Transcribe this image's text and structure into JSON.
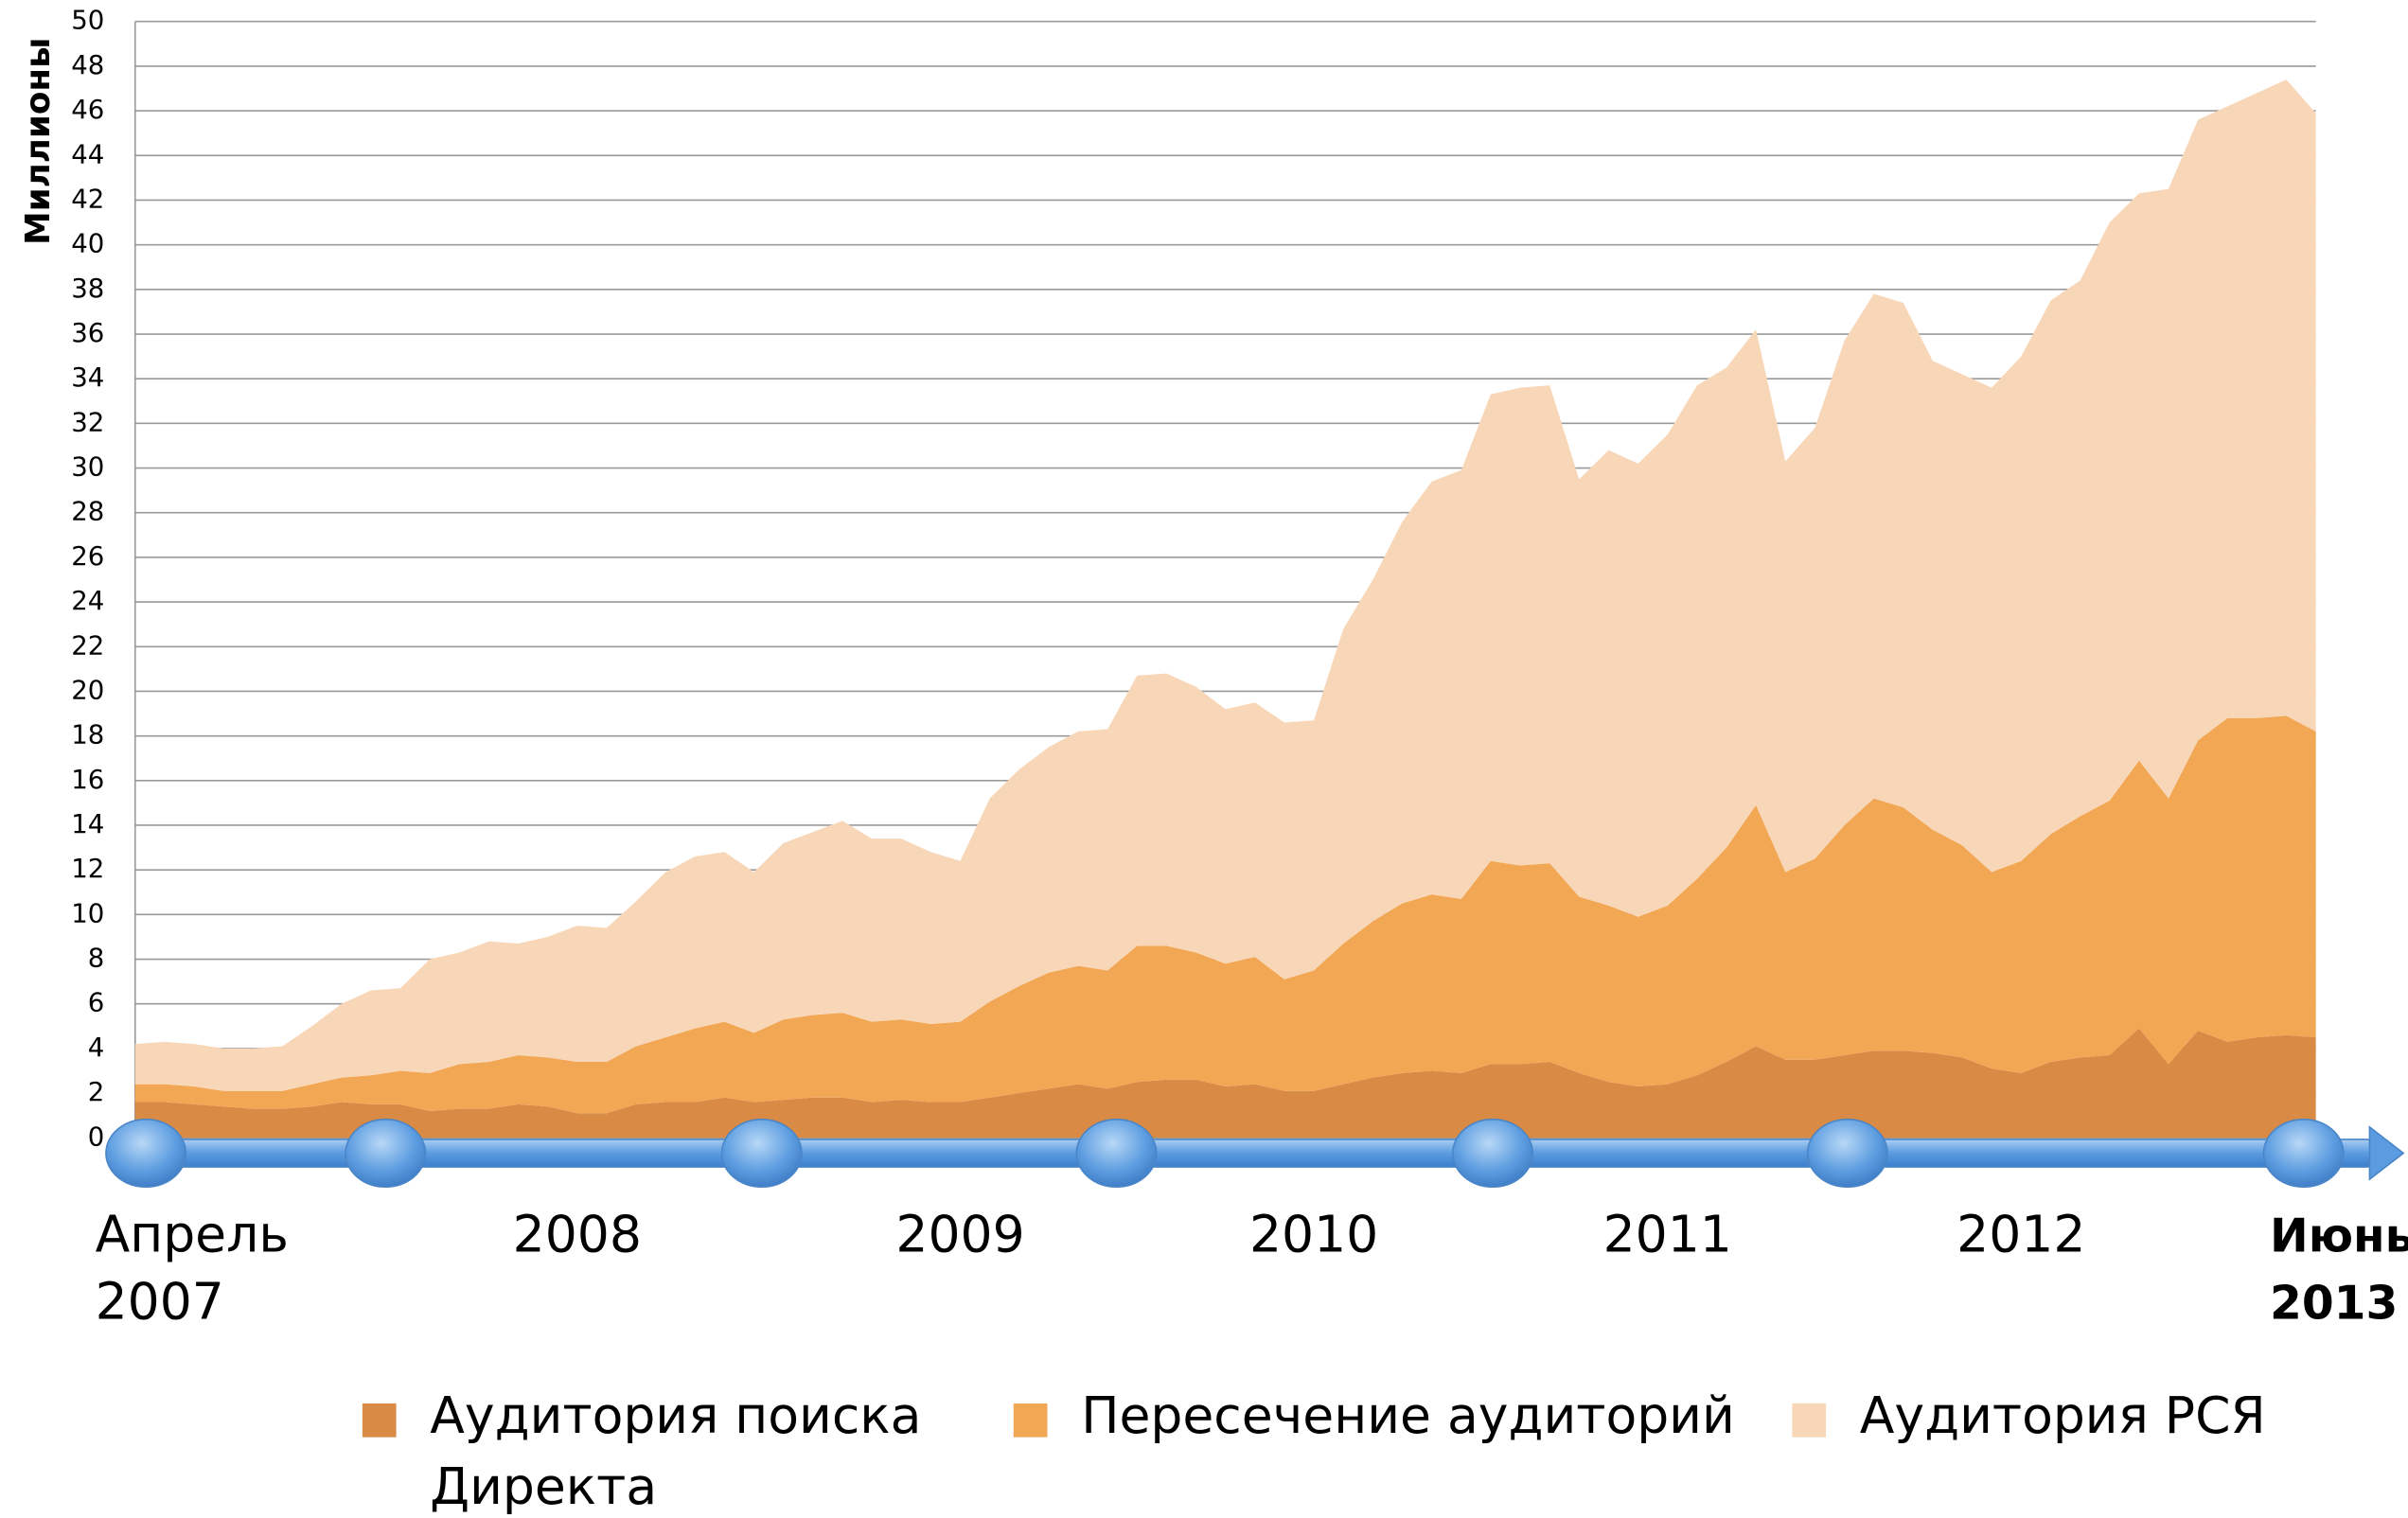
{
  "chart_data": {
    "type": "stacked-area",
    "y_label": "Миллионы",
    "categories": [
      "Апрель 2007",
      null,
      null,
      null,
      null,
      null,
      null,
      null,
      null,
      null,
      null,
      null,
      null,
      null,
      null,
      "2008",
      null,
      null,
      null,
      null,
      null,
      null,
      null,
      null,
      null,
      null,
      null,
      null,
      "2009",
      null,
      null,
      null,
      null,
      null,
      null,
      null,
      null,
      null,
      null,
      null,
      "2010",
      null,
      null,
      null,
      null,
      null,
      null,
      null,
      null,
      null,
      null,
      null,
      "2011",
      null,
      null,
      null,
      null,
      null,
      null,
      null,
      null,
      null,
      null,
      null,
      "2012",
      null,
      null,
      null,
      null,
      null,
      null,
      null,
      null,
      null,
      "Июнь 2013"
    ],
    "series": [
      {
        "name": "Аудитория поиска Директа",
        "color": "#d98a45",
        "values": [
          1.6,
          1.6,
          1.5,
          1.4,
          1.3,
          1.3,
          1.4,
          1.6,
          1.5,
          1.5,
          1.2,
          1.3,
          1.3,
          1.5,
          1.4,
          1.1,
          1.1,
          1.5,
          1.6,
          1.6,
          1.8,
          1.6,
          1.7,
          1.8,
          1.8,
          1.6,
          1.7,
          1.6,
          1.6,
          1.8,
          2.0,
          2.2,
          2.4,
          2.2,
          2.5,
          2.6,
          2.6,
          2.3,
          2.4,
          2.1,
          2.1,
          2.4,
          2.7,
          2.9,
          3.0,
          2.9,
          3.3,
          3.3,
          3.4,
          2.9,
          2.5,
          2.3,
          2.4,
          2.8,
          3.4,
          4.1,
          3.5,
          3.5,
          3.7,
          3.9,
          3.9,
          3.8,
          3.6,
          3.1,
          2.9,
          3.4,
          3.6,
          3.7,
          4.9,
          3.3,
          4.8,
          4.3,
          4.5,
          4.6,
          4.5
        ]
      },
      {
        "name": "Пересечение аудиторий",
        "color": "#f2a755",
        "values": [
          0.8,
          0.8,
          0.8,
          0.7,
          0.8,
          0.8,
          1.0,
          1.1,
          1.3,
          1.5,
          1.7,
          2.0,
          2.1,
          2.2,
          2.2,
          2.3,
          2.3,
          2.6,
          2.9,
          3.3,
          3.4,
          3.1,
          3.6,
          3.7,
          3.8,
          3.6,
          3.6,
          3.5,
          3.6,
          4.3,
          4.8,
          5.2,
          5.3,
          5.3,
          6.1,
          6.0,
          5.7,
          5.5,
          5.7,
          5.0,
          5.4,
          6.3,
          7.0,
          7.6,
          7.9,
          7.8,
          9.1,
          8.9,
          8.9,
          7.9,
          7.9,
          7.6,
          8.0,
          8.8,
          9.6,
          10.8,
          8.4,
          9.0,
          10.3,
          11.3,
          10.9,
          10.0,
          9.5,
          8.8,
          9.5,
          10.2,
          10.8,
          11.4,
          12.0,
          11.9,
          13.0,
          14.5,
          14.3,
          14.3,
          13.7
        ]
      },
      {
        "name": "Аудитория РСЯ",
        "color": "#f8d7b8",
        "values": [
          1.8,
          1.9,
          1.9,
          1.9,
          1.9,
          2.0,
          2.6,
          3.3,
          3.8,
          3.7,
          5.1,
          5.0,
          5.4,
          5.0,
          5.4,
          6.1,
          6.0,
          6.5,
          7.4,
          7.7,
          7.6,
          7.2,
          7.9,
          8.2,
          8.6,
          8.2,
          8.1,
          7.7,
          7.2,
          9.1,
          9.7,
          10.1,
          10.5,
          10.8,
          12.1,
          12.2,
          11.9,
          11.4,
          11.4,
          11.5,
          11.2,
          14.1,
          15.3,
          17.1,
          18.5,
          19.2,
          20.9,
          21.4,
          21.4,
          18.7,
          20.4,
          20.3,
          21.1,
          22.1,
          21.5,
          21.3,
          18.4,
          19.3,
          21.7,
          22.6,
          22.6,
          21.0,
          21.1,
          21.7,
          22.6,
          23.9,
          24.0,
          25.9,
          25.4,
          27.3,
          27.8,
          27.4,
          28.0,
          28.5,
          27.7
        ]
      }
    ],
    "ylim": [
      0,
      50
    ],
    "yticks": [
      0,
      2,
      4,
      6,
      8,
      10,
      12,
      14,
      16,
      18,
      20,
      22,
      24,
      26,
      28,
      30,
      32,
      34,
      36,
      38,
      40,
      42,
      44,
      46,
      48,
      50
    ],
    "grid": true
  }
}
